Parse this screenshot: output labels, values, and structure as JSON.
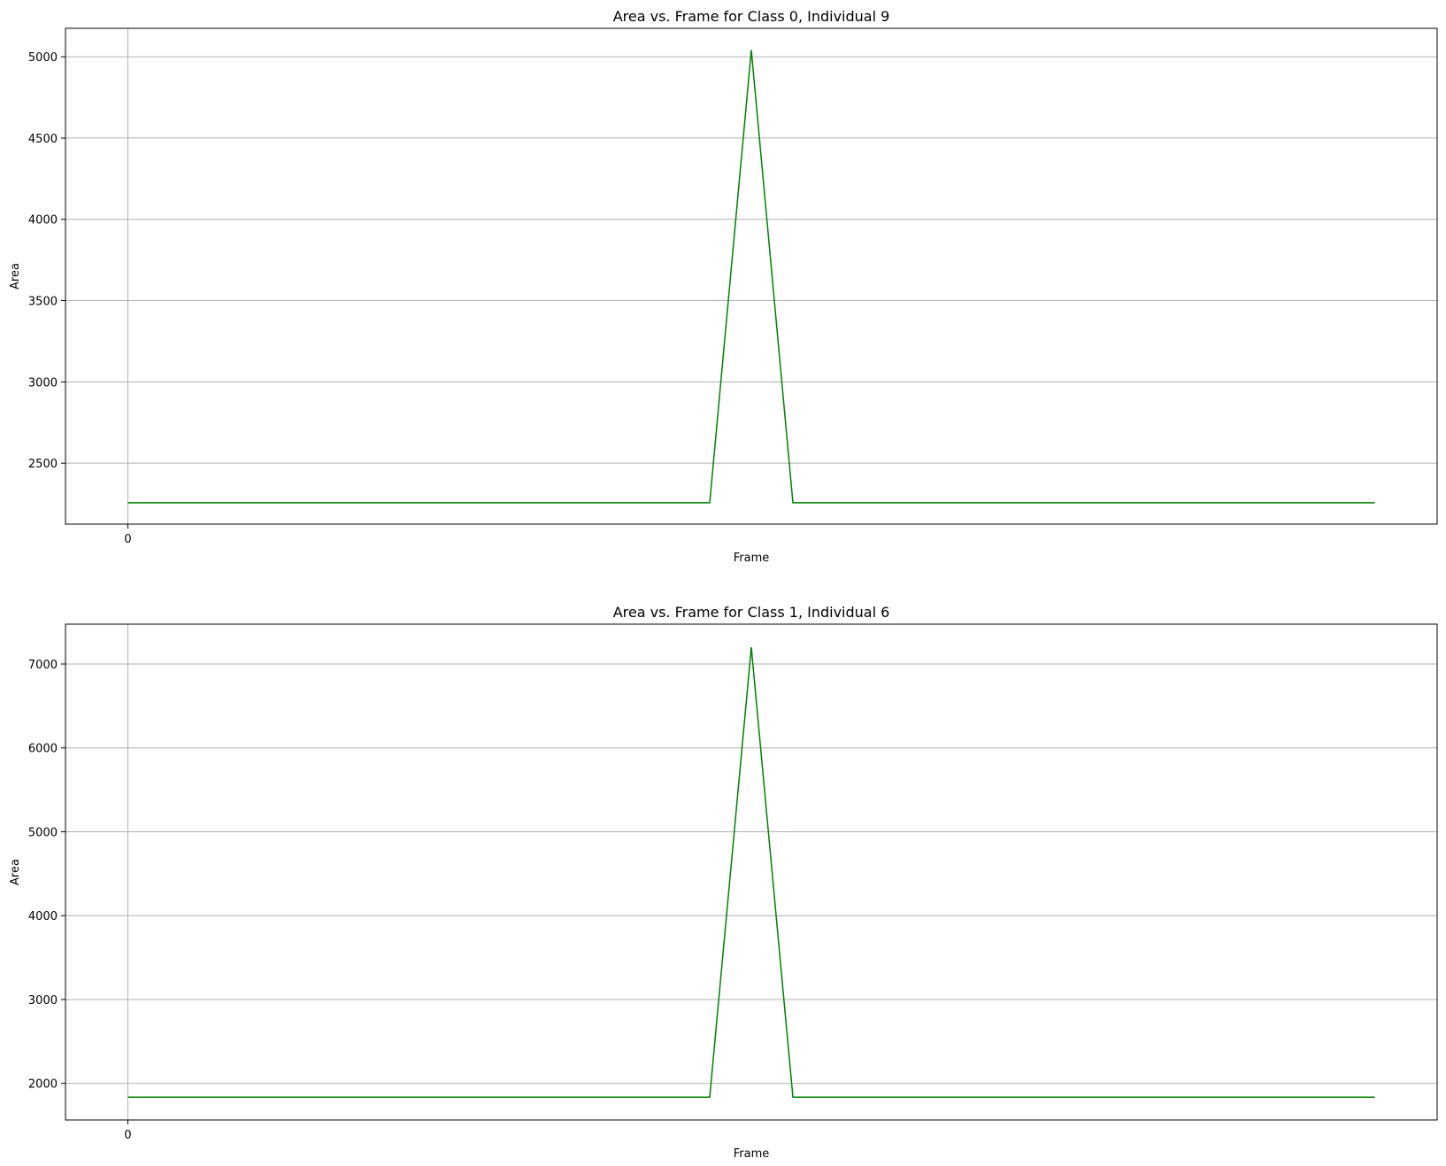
{
  "chart_data": [
    {
      "type": "line",
      "title": "Area vs. Frame for Class 0, Individual 9",
      "xlabel": "Frame",
      "ylabel": "Area",
      "xlim": [
        -1.5,
        31.5
      ],
      "ylim": [
        2125,
        5175
      ],
      "xticks": [
        0
      ],
      "xtick_labels": [
        "0"
      ],
      "yticks": [
        2500,
        3000,
        3500,
        4000,
        4500,
        5000
      ],
      "ytick_labels": [
        "2500",
        "3000",
        "3500",
        "4000",
        "4500",
        "5000"
      ],
      "grid": true,
      "series": [
        {
          "color": "#008000",
          "x": [
            0,
            1,
            2,
            3,
            4,
            5,
            6,
            7,
            8,
            9,
            10,
            11,
            12,
            13,
            14,
            15,
            16,
            17,
            18,
            19,
            20,
            21,
            22,
            23,
            24,
            25,
            26,
            27,
            28,
            29,
            30
          ],
          "values": [
            2256,
            2256,
            2256,
            2256,
            2256,
            2256,
            2256,
            2256,
            2256,
            2256,
            2256,
            2256,
            2256,
            2256,
            2256,
            5041,
            2256,
            2256,
            2256,
            2256,
            2256,
            2256,
            2256,
            2256,
            2256,
            2256,
            2256,
            2256,
            2256,
            2256,
            2256
          ]
        }
      ]
    },
    {
      "type": "line",
      "title": "Area vs. Frame for Class 1, Individual 6",
      "xlabel": "Frame",
      "ylabel": "Area",
      "xlim": [
        -1.5,
        31.5
      ],
      "ylim": [
        1564,
        7475
      ],
      "xticks": [
        0
      ],
      "xtick_labels": [
        "0"
      ],
      "yticks": [
        2000,
        3000,
        4000,
        5000,
        6000,
        7000
      ],
      "ytick_labels": [
        "2000",
        "3000",
        "4000",
        "5000",
        "6000",
        "7000"
      ],
      "grid": true,
      "series": [
        {
          "color": "#008000",
          "x": [
            0,
            1,
            2,
            3,
            4,
            5,
            6,
            7,
            8,
            9,
            10,
            11,
            12,
            13,
            14,
            15,
            16,
            17,
            18,
            19,
            20,
            21,
            22,
            23,
            24,
            25,
            26,
            27,
            28,
            29,
            30
          ],
          "values": [
            1836,
            1836,
            1836,
            1836,
            1836,
            1836,
            1836,
            1836,
            1836,
            1836,
            1836,
            1836,
            1836,
            1836,
            1836,
            7200,
            1836,
            1836,
            1836,
            1836,
            1836,
            1836,
            1836,
            1836,
            1836,
            1836,
            1836,
            1836,
            1836,
            1836,
            1836
          ]
        }
      ]
    }
  ]
}
